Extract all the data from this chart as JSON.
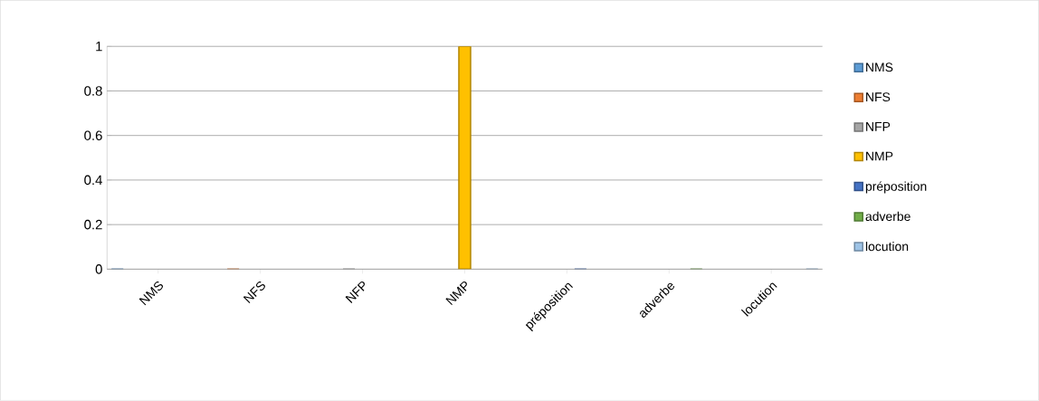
{
  "chart_data": {
    "type": "bar",
    "categories": [
      "NMS",
      "NFS",
      "NFP",
      "NMP",
      "préposition",
      "adverbe",
      "locution"
    ],
    "series": [
      {
        "name": "NMS",
        "color": "#5b9bd5",
        "values": [
          0,
          null,
          null,
          null,
          null,
          null,
          null
        ]
      },
      {
        "name": "NFS",
        "color": "#ed7d31",
        "values": [
          null,
          0,
          null,
          null,
          null,
          null,
          null
        ]
      },
      {
        "name": "NFP",
        "color": "#a5a5a5",
        "values": [
          null,
          null,
          0,
          null,
          null,
          null,
          null
        ]
      },
      {
        "name": "NMP",
        "color": "#ffc000",
        "values": [
          null,
          null,
          null,
          1,
          null,
          null,
          null
        ]
      },
      {
        "name": "préposition",
        "color": "#4472c4",
        "values": [
          null,
          null,
          null,
          null,
          0,
          null,
          null
        ]
      },
      {
        "name": "adverbe",
        "color": "#70ad47",
        "values": [
          null,
          null,
          null,
          null,
          null,
          0,
          null
        ]
      },
      {
        "name": "locution",
        "color": "#9dc3e6",
        "values": [
          null,
          null,
          null,
          null,
          null,
          null,
          0
        ]
      }
    ],
    "ylim": [
      0,
      1
    ],
    "yticks": [
      0,
      0.2,
      0.4,
      0.6,
      0.8,
      1
    ],
    "grid": "y",
    "legend": "right"
  }
}
